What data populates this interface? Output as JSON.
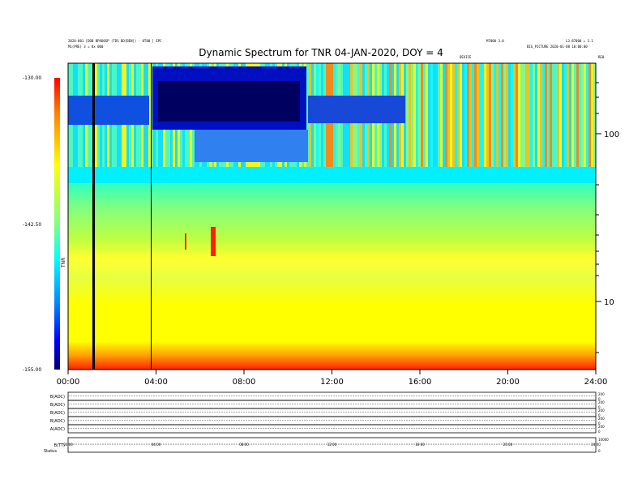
{
  "header": {
    "line1_left": "2020-001 [DOB BPAD0SP (TDS BD{BEN}) - 0T80 ] EPC",
    "line2_left": "M1(PRE) 3 = 8x 000",
    "line1_mid": "M7000 3.0",
    "line1_right": "L3:87000 = 3.1",
    "line2_right": "BIG_PICTURE 2020-01-08 10:00:00",
    "scale_right": "RE0",
    "top_marker": "DEVICE"
  },
  "chart_data": {
    "type": "heatmap",
    "title": "Dynamic Spectrum for TNR 04-JAN-2020, DOY = 4",
    "x_ticks": [
      "00:00",
      "04:00",
      "08:00",
      "12:00",
      "16:00",
      "20:00",
      "24:00"
    ],
    "x_range_hours": [
      0,
      24
    ],
    "y_right_ticks": [
      "100",
      "10"
    ],
    "y_scale": "log",
    "colorbar": {
      "label": "TNR",
      "tick_labels": [
        "-130.00",
        "-142.50",
        "-155.00"
      ],
      "range": [
        -155,
        -130
      ],
      "colors": [
        "#990000",
        "#ff0000",
        "#ff8000",
        "#ffff00",
        "#80ff80",
        "#00ffff",
        "#0080ff",
        "#0000ff",
        "#000080"
      ]
    },
    "panels": [
      {
        "label": "B(ADC)",
        "right_top": "200",
        "right_bottom": "0"
      },
      {
        "label": "B(ADC)",
        "right_top": "200",
        "right_bottom": "0"
      },
      {
        "label": "B(ADC)",
        "right_top": "200",
        "right_bottom": "0"
      },
      {
        "label": "B(ADC)",
        "right_top": "200",
        "right_bottom": "0"
      },
      {
        "label": "A(ADC)",
        "right_top": "200",
        "right_bottom": "0"
      },
      {
        "label": "B(TT)",
        "right_top": "10000",
        "right_bottom": "0"
      }
    ],
    "bottom_ticks": [
      "00:00",
      "04:00",
      "08:00",
      "12:00",
      "16:00",
      "20:00",
      "24:00"
    ],
    "bottom_left_label": "Status"
  }
}
